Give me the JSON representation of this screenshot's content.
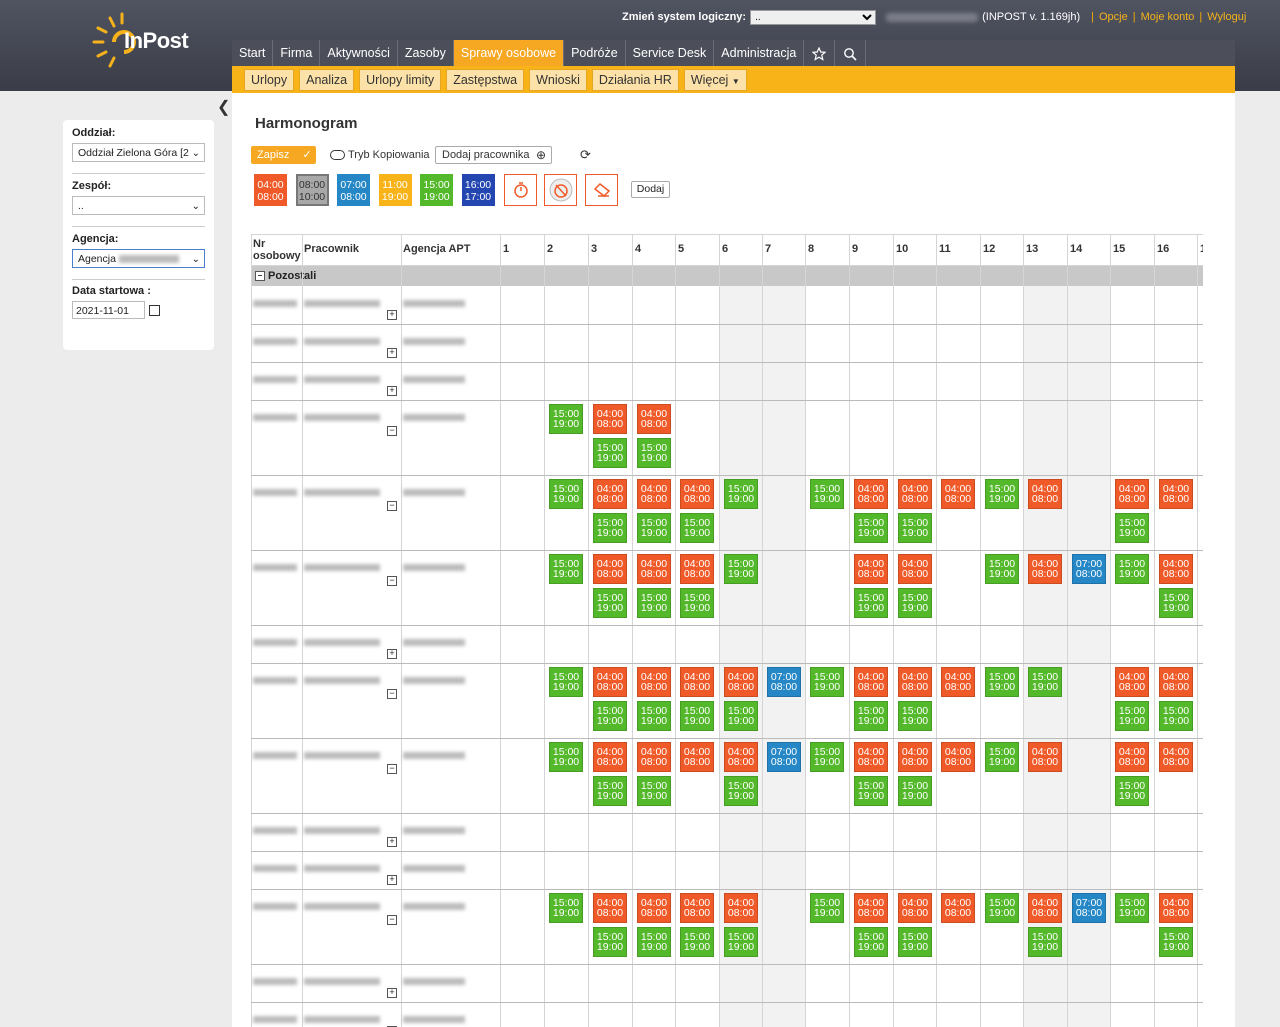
{
  "brand": {
    "name": "InPost"
  },
  "header": {
    "system_label": "Zmień system logiczny:",
    "system_value": "..",
    "version": "(INPOST v. 1.169jh)",
    "links": [
      "Opcje",
      "Moje konto",
      "Wyloguj"
    ]
  },
  "main_nav": [
    "Start",
    "Firma",
    "Aktywności",
    "Zasoby",
    "Sprawy osobowe",
    "Podróże",
    "Service Desk",
    "Administracja"
  ],
  "main_nav_active": 4,
  "sub_nav": [
    "Urlopy",
    "Analiza",
    "Urlopy limity",
    "Zastępstwa",
    "Wnioski",
    "Działania HR",
    "Więcej"
  ],
  "sidebar": {
    "oddzial_label": "Oddział:",
    "oddzial_value": "Oddział Zielona Góra [2",
    "zespol_label": "Zespół:",
    "zespol_value": "..",
    "agencja_label": "Agencja:",
    "agencja_value": "Agencja",
    "data_label": "Data startowa :",
    "data_value": "2021-11-01"
  },
  "page_title": "Harmonogram",
  "toolbar": {
    "save_label": "Zapisz",
    "copy_label": "Tryb Kopiowania",
    "add_employee_label": "Dodaj pracownika",
    "add_label": "Dodaj"
  },
  "templates": [
    {
      "start": "04:00",
      "end": "08:00",
      "color": "#f05a28"
    },
    {
      "start": "08:00",
      "end": "10:00",
      "color": "#a8a8a8",
      "text_color": "#333333"
    },
    {
      "start": "07:00",
      "end": "08:00",
      "color": "#2587c5"
    },
    {
      "start": "11:00",
      "end": "19:00",
      "color": "#f7b318"
    },
    {
      "start": "15:00",
      "end": "19:00",
      "color": "#54b82b"
    },
    {
      "start": "16:00",
      "end": "17:00",
      "color": "#2446b0"
    }
  ],
  "grid": {
    "headers": {
      "nr": "Nr osobowy",
      "pracownik": "Pracownik",
      "agencja": "Agencja APT"
    },
    "days": [
      "1",
      "2",
      "3",
      "4",
      "5",
      "6",
      "7",
      "8",
      "9",
      "10",
      "11",
      "12",
      "13",
      "14",
      "15",
      "16",
      "1"
    ],
    "weekend_days": [
      6,
      7,
      13,
      14
    ],
    "group_label": "Pozostali",
    "colors": {
      "A": "#f05a28",
      "B": "#54b82b",
      "C": "#2587c5"
    },
    "times": {
      "A": [
        "04:00",
        "08:00"
      ],
      "B": [
        "15:00",
        "19:00"
      ],
      "C": [
        "07:00",
        "08:00"
      ]
    },
    "rows": [
      {
        "expanded": false,
        "top": [
          "",
          "",
          "",
          "",
          "",
          "",
          "",
          "",
          "",
          "",
          "",
          "",
          "",
          "",
          "",
          ""
        ],
        "bottom": []
      },
      {
        "expanded": false,
        "top": [
          "",
          "",
          "",
          "",
          "",
          "",
          "",
          "",
          "",
          "",
          "",
          "",
          "",
          "",
          "",
          ""
        ],
        "bottom": []
      },
      {
        "expanded": false,
        "top": [
          "",
          "",
          "",
          "",
          "",
          "",
          "",
          "",
          "",
          "",
          "",
          "",
          "",
          "",
          "",
          ""
        ],
        "bottom": []
      },
      {
        "expanded": true,
        "top": [
          "",
          "B",
          "A",
          "A",
          "",
          "",
          "",
          "",
          "",
          "",
          "",
          "",
          "",
          "",
          "",
          ""
        ],
        "bottom": [
          "",
          "",
          "B",
          "B",
          "",
          "",
          "",
          "",
          "",
          "",
          "",
          "",
          "",
          "",
          "",
          ""
        ]
      },
      {
        "expanded": true,
        "top": [
          "",
          "B",
          "A",
          "A",
          "A",
          "B",
          "",
          "B",
          "A",
          "A",
          "A",
          "B",
          "A",
          "",
          "A",
          "A"
        ],
        "bottom": [
          "",
          "",
          "B",
          "B",
          "B",
          "",
          "",
          "",
          "B",
          "B",
          "",
          "",
          "",
          "",
          "B",
          ""
        ]
      },
      {
        "expanded": true,
        "top": [
          "",
          "B",
          "A",
          "A",
          "A",
          "B",
          "",
          "",
          "A",
          "A",
          "",
          "B",
          "A",
          "C",
          "B",
          "A"
        ],
        "bottom": [
          "",
          "",
          "B",
          "B",
          "B",
          "",
          "",
          "",
          "B",
          "B",
          "",
          "",
          "",
          "",
          "",
          "B"
        ]
      },
      {
        "expanded": false,
        "top": [
          "",
          "",
          "",
          "",
          "",
          "",
          "",
          "",
          "",
          "",
          "",
          "",
          "",
          "",
          "",
          ""
        ],
        "bottom": []
      },
      {
        "expanded": true,
        "top": [
          "",
          "B",
          "A",
          "A",
          "A",
          "A",
          "C",
          "B",
          "A",
          "A",
          "A",
          "B",
          "B",
          "",
          "A",
          "A"
        ],
        "bottom": [
          "",
          "",
          "B",
          "B",
          "B",
          "B",
          "",
          "",
          "B",
          "B",
          "",
          "",
          "",
          "",
          "B",
          "B"
        ]
      },
      {
        "expanded": true,
        "top": [
          "",
          "B",
          "A",
          "A",
          "A",
          "A",
          "C",
          "B",
          "A",
          "A",
          "A",
          "B",
          "A",
          "",
          "A",
          "A"
        ],
        "bottom": [
          "",
          "",
          "B",
          "B",
          "",
          "B",
          "",
          "",
          "B",
          "B",
          "",
          "",
          "",
          "",
          "B",
          ""
        ]
      },
      {
        "expanded": false,
        "top": [
          "",
          "",
          "",
          "",
          "",
          "",
          "",
          "",
          "",
          "",
          "",
          "",
          "",
          "",
          "",
          ""
        ],
        "bottom": []
      },
      {
        "expanded": false,
        "top": [
          "",
          "",
          "",
          "",
          "",
          "",
          "",
          "",
          "",
          "",
          "",
          "",
          "",
          "",
          "",
          ""
        ],
        "bottom": []
      },
      {
        "expanded": true,
        "top": [
          "",
          "B",
          "A",
          "A",
          "A",
          "A",
          "",
          "B",
          "A",
          "A",
          "A",
          "B",
          "A",
          "C",
          "B",
          "A"
        ],
        "bottom": [
          "",
          "",
          "B",
          "B",
          "B",
          "B",
          "",
          "",
          "B",
          "B",
          "",
          "",
          "B",
          "",
          "",
          "B"
        ]
      },
      {
        "expanded": false,
        "top": [
          "",
          "",
          "",
          "",
          "",
          "",
          "",
          "",
          "",
          "",
          "",
          "",
          "",
          "",
          "",
          ""
        ],
        "bottom": []
      },
      {
        "expanded": false,
        "top": [
          "",
          "",
          "",
          "",
          "",
          "",
          "",
          "",
          "",
          "",
          "",
          "",
          "",
          "",
          "",
          ""
        ],
        "bottom": []
      }
    ]
  }
}
